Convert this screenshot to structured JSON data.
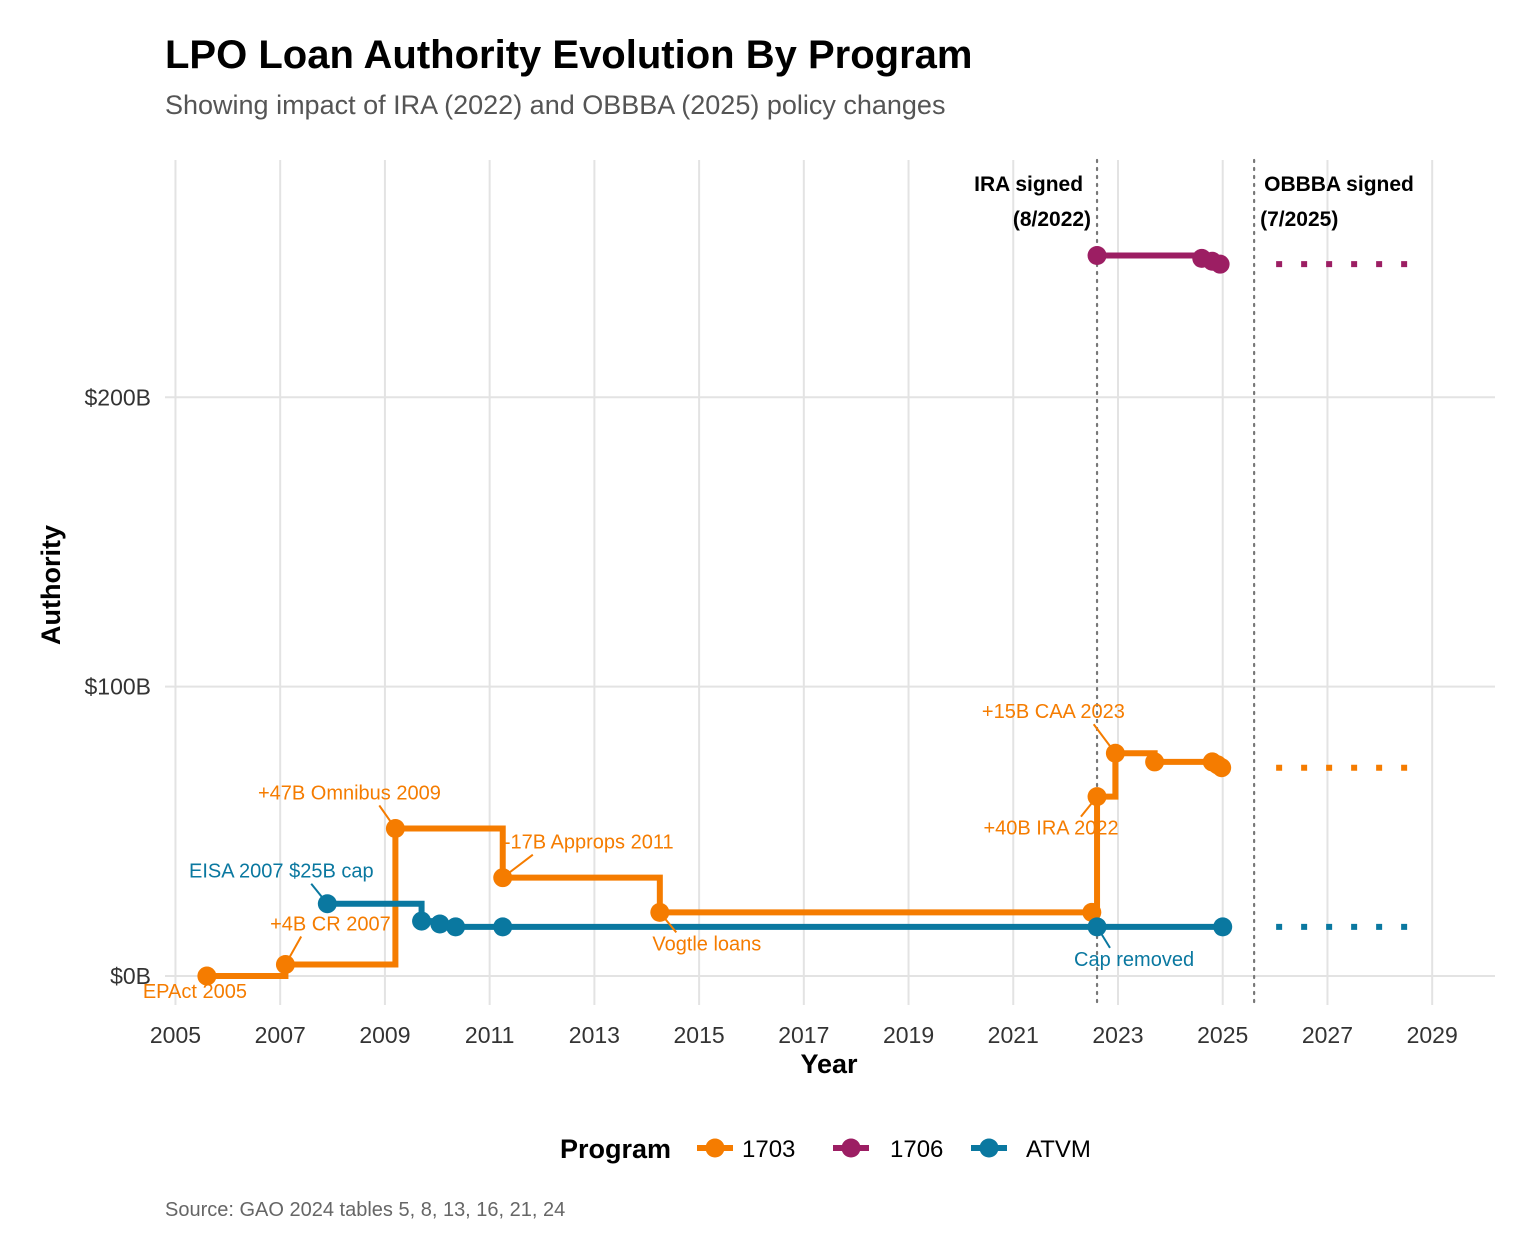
{
  "chart_data": {
    "type": "line",
    "step": true,
    "title": "LPO Loan Authority Evolution By Program",
    "subtitle": "Showing impact of IRA (2022) and OBBBA (2025) policy changes",
    "xlabel": "Year",
    "ylabel": "Authority",
    "xlim": [
      2004.8,
      2030.2
    ],
    "ylim": [
      -10,
      282
    ],
    "x_ticks": [
      2005,
      2007,
      2009,
      2011,
      2013,
      2015,
      2017,
      2019,
      2021,
      2023,
      2025,
      2027,
      2029
    ],
    "y_ticks": [
      0,
      100,
      200
    ],
    "y_tick_labels": [
      "$0B",
      "$100B",
      "$200B"
    ],
    "grid": true,
    "legend": {
      "title": "Program",
      "position": "bottom"
    },
    "caption": "Source: GAO 2024 tables 5, 8, 13, 16, 21, 24",
    "series": [
      {
        "name": "1703",
        "color": "#F57C00",
        "points": [
          [
            2005.6,
            0
          ],
          [
            2007.1,
            4
          ],
          [
            2009.2,
            51
          ],
          [
            2011.25,
            34
          ],
          [
            2014.25,
            22
          ],
          [
            2022.5,
            22
          ],
          [
            2022.6,
            62
          ],
          [
            2022.95,
            77
          ],
          [
            2023.7,
            74
          ],
          [
            2024.8,
            74
          ],
          [
            2024.9,
            73
          ],
          [
            2024.98,
            72
          ]
        ],
        "projection": {
          "from": 2025.6,
          "to": 2028.8,
          "value": 72
        }
      },
      {
        "name": "1706",
        "color": "#9C1E63",
        "points": [
          [
            2022.6,
            249
          ],
          [
            2024.6,
            248
          ],
          [
            2024.8,
            247
          ],
          [
            2024.95,
            246
          ]
        ],
        "projection": {
          "from": 2025.6,
          "to": 2028.8,
          "value": 246
        }
      },
      {
        "name": "ATVM",
        "color": "#0A78A0",
        "points": [
          [
            2007.9,
            25
          ],
          [
            2009.7,
            19
          ],
          [
            2010.05,
            18
          ],
          [
            2010.35,
            17
          ],
          [
            2011.25,
            17
          ],
          [
            2022.6,
            17
          ],
          [
            2025.0,
            17
          ]
        ],
        "projection": {
          "from": 2025.6,
          "to": 2028.8,
          "value": 17
        }
      }
    ],
    "vlines": [
      {
        "x": 2022.6,
        "label_line1": "IRA signed",
        "label_line2": "(8/2022)"
      },
      {
        "x": 2025.6,
        "label_line1": "OBBBA signed",
        "label_line2": "(7/2025)"
      }
    ],
    "annotations": [
      {
        "text": "EPAct 2005",
        "series": "1703",
        "x": 2005.6,
        "y": 0
      },
      {
        "text": "+4B CR 2007",
        "series": "1703",
        "x": 2007.1,
        "y": 4
      },
      {
        "text": "+47B Omnibus 2009",
        "series": "1703",
        "x": 2009.2,
        "y": 51
      },
      {
        "text": "-17B Approps 2011",
        "series": "1703",
        "x": 2011.25,
        "y": 34
      },
      {
        "text": "Vogtle loans",
        "series": "1703",
        "x": 2014.25,
        "y": 22
      },
      {
        "text": "+40B IRA 2022",
        "series": "1703",
        "x": 2022.6,
        "y": 62
      },
      {
        "text": "+15B CAA 2023",
        "series": "1703",
        "x": 2022.95,
        "y": 77
      },
      {
        "text": "EISA 2007 $25B cap",
        "series": "ATVM",
        "x": 2007.9,
        "y": 25
      },
      {
        "text": "Cap removed",
        "series": "ATVM",
        "x": 2022.6,
        "y": 17
      }
    ]
  }
}
